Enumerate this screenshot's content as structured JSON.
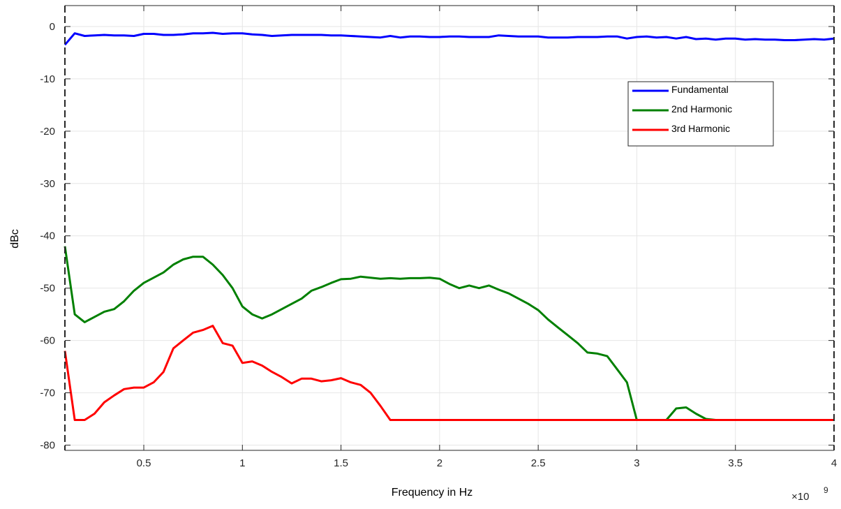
{
  "chart_data": {
    "type": "line",
    "title": "",
    "xlabel": "Frequency in Hz",
    "ylabel": "dBc",
    "x_exponent_base": "×10",
    "x_exponent_power": "9",
    "xlim": [
      0.1,
      4.0
    ],
    "ylim": [
      -81,
      4
    ],
    "x_ticks": [
      0.5,
      1,
      1.5,
      2,
      2.5,
      3,
      3.5,
      4
    ],
    "x_tick_labels": [
      "0.5",
      "1",
      "1.5",
      "2",
      "2.5",
      "3",
      "3.5",
      "4"
    ],
    "y_ticks": [
      0,
      -10,
      -20,
      -30,
      -40,
      -50,
      -60,
      -70,
      -80
    ],
    "y_tick_labels": [
      "0",
      "-10",
      "-20",
      "-30",
      "-40",
      "-50",
      "-60",
      "-70",
      "-80"
    ],
    "grid": true,
    "legend_position": "top-right",
    "series": [
      {
        "name": "Fundamental",
        "color": "#0000ff",
        "x": [
          0.1,
          0.15,
          0.2,
          0.25,
          0.3,
          0.35,
          0.4,
          0.45,
          0.5,
          0.55,
          0.6,
          0.65,
          0.7,
          0.75,
          0.8,
          0.85,
          0.9,
          0.95,
          1.0,
          1.05,
          1.1,
          1.15,
          1.2,
          1.25,
          1.3,
          1.35,
          1.4,
          1.45,
          1.5,
          1.55,
          1.6,
          1.65,
          1.7,
          1.75,
          1.8,
          1.85,
          1.9,
          1.95,
          2.0,
          2.05,
          2.1,
          2.15,
          2.2,
          2.25,
          2.3,
          2.35,
          2.4,
          2.45,
          2.5,
          2.55,
          2.6,
          2.65,
          2.7,
          2.75,
          2.8,
          2.85,
          2.9,
          2.95,
          3.0,
          3.05,
          3.1,
          3.15,
          3.2,
          3.25,
          3.3,
          3.35,
          3.4,
          3.45,
          3.5,
          3.55,
          3.6,
          3.65,
          3.7,
          3.75,
          3.8,
          3.85,
          3.9,
          3.95,
          4.0
        ],
        "y": [
          -3.5,
          -1.3,
          -1.8,
          -1.7,
          -1.6,
          -1.7,
          -1.7,
          -1.8,
          -1.4,
          -1.4,
          -1.6,
          -1.6,
          -1.5,
          -1.3,
          -1.3,
          -1.2,
          -1.4,
          -1.3,
          -1.3,
          -1.5,
          -1.6,
          -1.8,
          -1.7,
          -1.6,
          -1.6,
          -1.6,
          -1.6,
          -1.7,
          -1.7,
          -1.8,
          -1.9,
          -2.0,
          -2.1,
          -1.8,
          -2.1,
          -1.9,
          -1.9,
          -2.0,
          -2.0,
          -1.9,
          -1.9,
          -2.0,
          -2.0,
          -2.0,
          -1.7,
          -1.8,
          -1.9,
          -1.9,
          -1.9,
          -2.1,
          -2.1,
          -2.1,
          -2.0,
          -2.0,
          -2.0,
          -1.9,
          -1.9,
          -2.3,
          -2.0,
          -1.9,
          -2.1,
          -2.0,
          -2.3,
          -2.0,
          -2.4,
          -2.3,
          -2.5,
          -2.3,
          -2.3,
          -2.5,
          -2.4,
          -2.5,
          -2.5,
          -2.6,
          -2.6,
          -2.5,
          -2.4,
          -2.5,
          -2.3
        ]
      },
      {
        "name": "2nd Harmonic",
        "color": "#008000",
        "x": [
          0.1,
          0.15,
          0.2,
          0.25,
          0.3,
          0.35,
          0.4,
          0.45,
          0.5,
          0.55,
          0.6,
          0.65,
          0.7,
          0.75,
          0.8,
          0.85,
          0.9,
          0.95,
          1.0,
          1.05,
          1.1,
          1.15,
          1.2,
          1.25,
          1.3,
          1.35,
          1.4,
          1.45,
          1.5,
          1.55,
          1.6,
          1.65,
          1.7,
          1.75,
          1.8,
          1.85,
          1.9,
          1.95,
          2.0,
          2.05,
          2.1,
          2.15,
          2.2,
          2.25,
          2.3,
          2.35,
          2.4,
          2.45,
          2.5,
          2.55,
          2.6,
          2.65,
          2.7,
          2.75,
          2.8,
          2.85,
          2.9,
          2.95,
          3.0,
          3.05,
          3.1,
          3.15,
          3.2,
          3.25,
          3.3,
          3.35,
          3.4,
          3.45,
          3.5,
          3.55,
          3.6,
          3.65,
          3.7,
          3.75,
          3.8,
          3.85,
          3.9,
          3.95,
          4.0
        ],
        "y": [
          -42,
          -55,
          -56.5,
          -55.5,
          -54.5,
          -54,
          -52.5,
          -50.5,
          -49,
          -48,
          -47,
          -45.5,
          -44.5,
          -44,
          -44,
          -45.5,
          -47.5,
          -50,
          -53.5,
          -55,
          -55.8,
          -55,
          -54,
          -53,
          -52,
          -50.5,
          -49.8,
          -49,
          -48.3,
          -48.2,
          -47.8,
          -48,
          -48.2,
          -48.1,
          -48.2,
          -48.1,
          -48.1,
          -48,
          -48.2,
          -49.2,
          -50,
          -49.5,
          -50,
          -49.5,
          -50.3,
          -51,
          -52,
          -53,
          -54.2,
          -56,
          -57.5,
          -59,
          -60.5,
          -62.3,
          -62.5,
          -63,
          -65.5,
          -68,
          -75.2,
          -75.2,
          -75.2,
          -75.2,
          -73,
          -72.8,
          -74,
          -75,
          -75.2,
          -75.2,
          -75.2,
          -75.2,
          -75.2,
          -75.2,
          -75.2,
          -75.2,
          -75.2,
          -75.2,
          -75.2,
          -75.2,
          -75.2
        ]
      },
      {
        "name": "3rd Harmonic",
        "color": "#ff0000",
        "x": [
          0.1,
          0.15,
          0.2,
          0.25,
          0.3,
          0.35,
          0.4,
          0.45,
          0.5,
          0.55,
          0.6,
          0.65,
          0.7,
          0.75,
          0.8,
          0.85,
          0.9,
          0.95,
          1.0,
          1.05,
          1.1,
          1.15,
          1.2,
          1.25,
          1.3,
          1.35,
          1.4,
          1.45,
          1.5,
          1.55,
          1.6,
          1.65,
          1.7,
          1.75,
          1.8,
          1.85,
          1.9,
          1.95,
          2.0,
          2.05,
          2.1,
          2.15,
          2.2,
          2.25,
          2.3,
          2.35,
          2.4,
          2.45,
          2.5,
          2.55,
          2.6,
          2.65,
          2.7,
          2.75,
          2.8,
          2.85,
          2.9,
          2.95,
          3.0,
          3.05,
          3.1,
          3.15,
          3.2,
          3.25,
          3.3,
          3.35,
          3.4,
          3.45,
          3.5,
          3.55,
          3.6,
          3.65,
          3.7,
          3.75,
          3.8,
          3.85,
          3.9,
          3.95,
          4.0
        ],
        "y": [
          -62,
          -75.2,
          -75.2,
          -74,
          -71.8,
          -70.5,
          -69.3,
          -69,
          -69,
          -68,
          -66,
          -61.5,
          -60,
          -58.5,
          -58,
          -57.2,
          -60.5,
          -61,
          -64.3,
          -64,
          -64.8,
          -66,
          -67,
          -68.2,
          -67.3,
          -67.3,
          -67.8,
          -67.6,
          -67.2,
          -68,
          -68.5,
          -70,
          -72.5,
          -75.2,
          -75.2,
          -75.2,
          -75.2,
          -75.2,
          -75.2,
          -75.2,
          -75.2,
          -75.2,
          -75.2,
          -75.2,
          -75.2,
          -75.2,
          -75.2,
          -75.2,
          -75.2,
          -75.2,
          -75.2,
          -75.2,
          -75.2,
          -75.2,
          -75.2,
          -75.2,
          -75.2,
          -75.2,
          -75.2,
          -75.2,
          -75.2,
          -75.2,
          -75.2,
          -75.2,
          -75.2,
          -75.2,
          -75.2,
          -75.2,
          -75.2,
          -75.2,
          -75.2,
          -75.2,
          -75.2,
          -75.2,
          -75.2,
          -75.2,
          -75.2,
          -75.2,
          -75.2
        ]
      }
    ]
  }
}
